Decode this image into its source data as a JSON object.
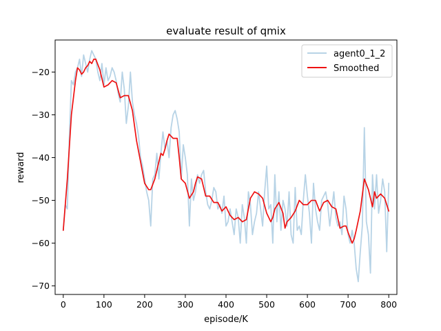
{
  "chart_data": {
    "type": "line",
    "title": "evaluate result of qmix",
    "xlabel": "episode/K",
    "ylabel": "reward",
    "xlim": [
      -20,
      820
    ],
    "ylim": [
      -72,
      -12.5
    ],
    "xticks": [
      0,
      100,
      200,
      300,
      400,
      500,
      600,
      700,
      800
    ],
    "yticks": [
      -70,
      -60,
      -50,
      -40,
      -30,
      -20
    ],
    "xtick_labels": [
      "0",
      "100",
      "200",
      "300",
      "400",
      "500",
      "600",
      "700",
      "800"
    ],
    "ytick_labels": [
      "−70",
      "−60",
      "−50",
      "−40",
      "−30",
      "−20"
    ],
    "grid": false,
    "legend_position": "top-right",
    "series": [
      {
        "name": "agent0_1_2",
        "color": "#b7d3e6",
        "x": [
          0,
          5,
          10,
          15,
          20,
          25,
          30,
          35,
          40,
          45,
          50,
          55,
          60,
          65,
          70,
          75,
          80,
          85,
          90,
          95,
          100,
          105,
          110,
          115,
          120,
          125,
          130,
          135,
          140,
          145,
          150,
          155,
          160,
          165,
          170,
          175,
          180,
          185,
          190,
          195,
          200,
          205,
          210,
          215,
          220,
          225,
          230,
          235,
          240,
          245,
          250,
          255,
          260,
          265,
          270,
          275,
          280,
          285,
          290,
          295,
          300,
          305,
          310,
          315,
          320,
          325,
          330,
          335,
          340,
          345,
          350,
          355,
          360,
          365,
          370,
          375,
          380,
          385,
          390,
          395,
          400,
          405,
          410,
          415,
          420,
          425,
          430,
          435,
          440,
          445,
          450,
          455,
          460,
          465,
          470,
          475,
          480,
          485,
          490,
          495,
          500,
          505,
          510,
          515,
          520,
          525,
          530,
          535,
          540,
          545,
          550,
          555,
          560,
          565,
          570,
          575,
          580,
          585,
          590,
          595,
          600,
          605,
          610,
          615,
          620,
          625,
          630,
          635,
          640,
          645,
          650,
          655,
          660,
          665,
          670,
          675,
          680,
          685,
          690,
          695,
          700,
          705,
          710,
          715,
          720,
          725,
          730,
          735,
          740,
          745,
          750,
          755,
          760,
          765,
          770,
          775,
          780,
          785,
          790,
          795,
          800
        ],
        "y": [
          -57,
          -51,
          -52,
          -35,
          -22,
          -23,
          -20,
          -19,
          -17,
          -21,
          -16,
          -18,
          -20,
          -17,
          -15,
          -16,
          -17,
          -20,
          -22,
          -18,
          -23,
          -19,
          -22,
          -21,
          -19,
          -20,
          -22,
          -25,
          -27,
          -20,
          -24,
          -32,
          -28,
          -20,
          -27,
          -30,
          -32,
          -35,
          -40,
          -42,
          -45,
          -48,
          -50,
          -56,
          -45,
          -44,
          -39,
          -45,
          -39,
          -34,
          -38,
          -36,
          -40,
          -33,
          -30,
          -29,
          -31,
          -34,
          -45,
          -37,
          -40,
          -44,
          -56,
          -45,
          -50,
          -48,
          -44,
          -46,
          -44,
          -43,
          -48,
          -51,
          -52,
          -50,
          -47,
          -48,
          -52,
          -51,
          -53,
          -49,
          -56,
          -55,
          -52,
          -55,
          -58,
          -52,
          -54,
          -60,
          -51,
          -54,
          -60,
          -48,
          -51,
          -58,
          -55,
          -53,
          -48,
          -52,
          -56,
          -48,
          -42,
          -52,
          -51,
          -60,
          -44,
          -55,
          -48,
          -57,
          -50,
          -52,
          -56,
          -48,
          -58,
          -60,
          -47,
          -57,
          -56,
          -58,
          -50,
          -44,
          -49,
          -53,
          -60,
          -46,
          -52,
          -55,
          -57,
          -50,
          -49,
          -48,
          -51,
          -56,
          -52,
          -48,
          -54,
          -56,
          -55,
          -58,
          -49,
          -52,
          -58,
          -60,
          -57,
          -60,
          -66,
          -69,
          -62,
          -56,
          -33,
          -55,
          -58,
          -67,
          -44,
          -52,
          -44,
          -53,
          -50,
          -45,
          -48,
          -62,
          -46
        ]
      },
      {
        "name": "Smoothed",
        "color": "#ee1111",
        "x": [
          0,
          10,
          20,
          30,
          35,
          40,
          45,
          50,
          55,
          60,
          65,
          70,
          75,
          80,
          90,
          100,
          110,
          120,
          130,
          140,
          150,
          160,
          170,
          180,
          190,
          200,
          210,
          215,
          225,
          240,
          245,
          250,
          255,
          260,
          270,
          280,
          285,
          290,
          300,
          310,
          320,
          325,
          330,
          340,
          350,
          360,
          370,
          380,
          390,
          400,
          410,
          420,
          430,
          440,
          450,
          460,
          470,
          480,
          490,
          500,
          510,
          515,
          520,
          530,
          540,
          545,
          550,
          560,
          570,
          580,
          590,
          600,
          610,
          620,
          630,
          640,
          650,
          660,
          670,
          680,
          690,
          695,
          700,
          710,
          715,
          720,
          730,
          740,
          750,
          755,
          760,
          765,
          770,
          780,
          790,
          800
        ],
        "y": [
          -57,
          -45,
          -30,
          -22,
          -19,
          -19.5,
          -20.5,
          -20,
          -19,
          -18.5,
          -17.5,
          -18,
          -17,
          -17,
          -19.5,
          -23.5,
          -23,
          -22,
          -22.5,
          -26,
          -25.5,
          -25.5,
          -29,
          -36,
          -41,
          -46,
          -47.5,
          -47.5,
          -45,
          -39,
          -39.5,
          -38,
          -36,
          -34.5,
          -35.5,
          -35.5,
          -40,
          -45,
          -46,
          -49.5,
          -48,
          -46,
          -44.5,
          -45,
          -49,
          -49,
          -50.5,
          -50.5,
          -52.5,
          -51.5,
          -53.5,
          -54.5,
          -54,
          -55,
          -54.5,
          -49.5,
          -48,
          -48.5,
          -49.5,
          -53,
          -55,
          -54,
          -52,
          -50.5,
          -53,
          -56.5,
          -55,
          -54,
          -52.5,
          -50,
          -51,
          -51,
          -50,
          -50,
          -52.5,
          -50.5,
          -50,
          -51.5,
          -52,
          -56.5,
          -56,
          -56,
          -57.5,
          -60,
          -59,
          -57,
          -52.5,
          -45,
          -47.5,
          -49.5,
          -51.5,
          -48,
          -49.5,
          -48.5,
          -49.5,
          -52.5
        ]
      }
    ]
  }
}
